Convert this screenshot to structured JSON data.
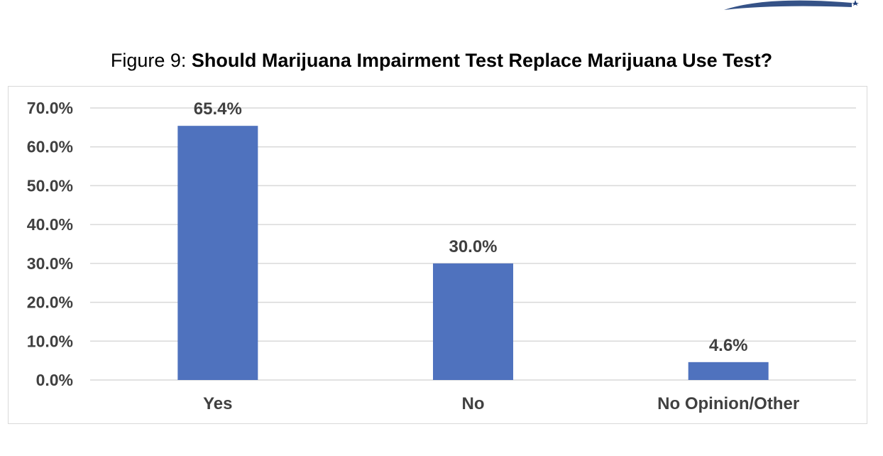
{
  "header": {
    "title_prefix": "Figure 9: ",
    "title_main": "Should Marijuana Impairment Test Replace Marijuana Use Test?"
  },
  "chart_data": {
    "type": "bar",
    "categories": [
      "Yes",
      "No",
      "No Opinion/Other"
    ],
    "values": [
      65.4,
      30.0,
      4.6
    ],
    "data_labels": [
      "65.4%",
      "30.0%",
      "4.6%"
    ],
    "ylim": [
      0,
      70
    ],
    "yticks": [
      0,
      10,
      20,
      30,
      40,
      50,
      60,
      70
    ],
    "ytick_labels": [
      "0.0%",
      "10.0%",
      "20.0%",
      "30.0%",
      "40.0%",
      "50.0%",
      "60.0%",
      "70.0%"
    ],
    "grid": true,
    "bar_color": "#4f72be",
    "grid_color": "#d9d9d9",
    "text_color": "#404040"
  }
}
